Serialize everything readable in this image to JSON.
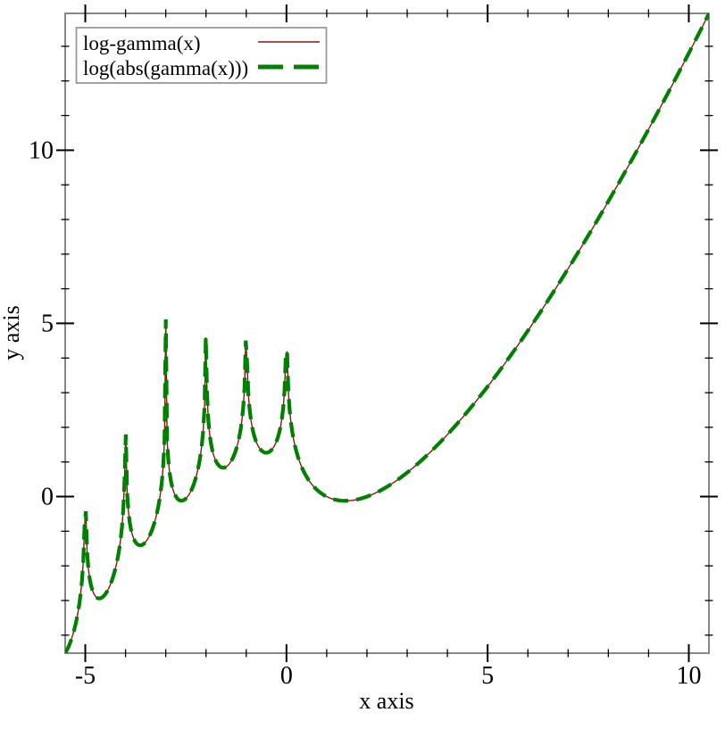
{
  "page": {
    "background": "#ffffff"
  },
  "chart_data": {
    "type": "line",
    "title": "",
    "xlabel": "x axis",
    "ylabel": "y axis",
    "xlim": [
      -5.5,
      10.5
    ],
    "ylim": [
      -4.52,
      13.95
    ],
    "grid": false,
    "legend_position": "top-left",
    "axis_color": "#878787",
    "tick_color": "#000000",
    "legend_border_color": "#999999",
    "x_ticks": {
      "major": [
        -5,
        0,
        5,
        10
      ],
      "major_labels": [
        "-5",
        "0",
        "5",
        "10"
      ],
      "minor": [
        -4,
        -3,
        -2,
        -1,
        1,
        2,
        3,
        4,
        6,
        7,
        8,
        9
      ]
    },
    "y_ticks": {
      "major": [
        0,
        5,
        10
      ],
      "major_labels": [
        "0",
        "5",
        "10"
      ],
      "minor": [
        -4,
        -3,
        -2,
        -1,
        1,
        2,
        3,
        4,
        6,
        7,
        8,
        9,
        11,
        12,
        13
      ]
    },
    "series": [
      {
        "name": "log-gamma(x)",
        "function": "log-gamma(x) = ln|gamma(x)|",
        "color": "#8b1515",
        "width": 1.4,
        "style": "solid",
        "samples": 500
      },
      {
        "name": "log(abs(gamma(x)))",
        "function": "ln|gamma(x)|",
        "color": "#008000",
        "width": 4.2,
        "style": "long-dash",
        "dash": [
          17,
          9
        ],
        "samples": 500
      }
    ],
    "poles": [
      0,
      -1,
      -2,
      -3,
      -4,
      -5
    ],
    "displayed_pole_peaks": {
      "-5": -0.44,
      "-4": 1.78,
      "-3": 5.1,
      "-2": 4.59,
      "-1": 4.5,
      "0": 4.2
    },
    "key_points": [
      [
        -5.5,
        -4.52
      ],
      [
        -4.5,
        -2.81
      ],
      [
        -3.5,
        -1.31
      ],
      [
        -2.5,
        -0.06
      ],
      [
        -1.5,
        0.86
      ],
      [
        -0.5,
        1.27
      ],
      [
        1,
        0
      ],
      [
        1.461,
        -0.121
      ],
      [
        2,
        0
      ],
      [
        3,
        0.69
      ],
      [
        4,
        1.79
      ],
      [
        5,
        3.18
      ],
      [
        6,
        4.79
      ],
      [
        7,
        6.58
      ],
      [
        8,
        8.53
      ],
      [
        9,
        10.6
      ],
      [
        10,
        12.8
      ],
      [
        10.5,
        13.94
      ]
    ]
  }
}
